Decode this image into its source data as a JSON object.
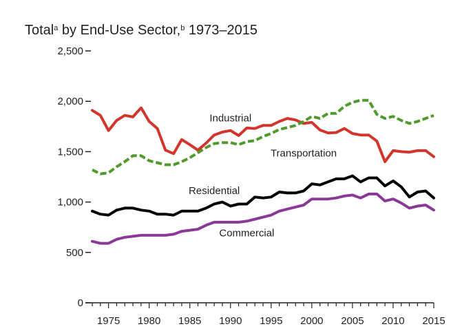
{
  "chart_data": {
    "type": "line",
    "title": {
      "main": "Total",
      "sup_a": "a",
      "middle": " by End-Use Sector,",
      "sup_b": "b",
      "end": " 1973–2015"
    },
    "xlabel": "",
    "ylabel": "",
    "xlim": [
      1973,
      2015
    ],
    "ylim": [
      0,
      2500
    ],
    "grid": false,
    "legend": "inline-labels",
    "yticks": [
      0,
      500,
      1000,
      1500,
      2000,
      2500
    ],
    "ytick_labels": [
      "0",
      "500",
      "1,000",
      "1,500",
      "2,000",
      "2,500"
    ],
    "xticks": [
      1975,
      1980,
      1985,
      1990,
      1995,
      2000,
      2005,
      2010,
      2015
    ],
    "xtick_labels": [
      "1975",
      "1980",
      "1985",
      "1990",
      "1995",
      "2000",
      "2005",
      "2010",
      "2015"
    ],
    "x": [
      1973,
      1974,
      1975,
      1976,
      1977,
      1978,
      1979,
      1980,
      1981,
      1982,
      1983,
      1984,
      1985,
      1986,
      1987,
      1988,
      1989,
      1990,
      1991,
      1992,
      1993,
      1994,
      1995,
      1996,
      1997,
      1998,
      1999,
      2000,
      2001,
      2002,
      2003,
      2004,
      2005,
      2006,
      2007,
      2008,
      2009,
      2010,
      2011,
      2012,
      2013,
      2014,
      2015
    ],
    "series": [
      {
        "name": "Industrial",
        "color": "#d2352c",
        "dash": false,
        "values": [
          1910,
          1860,
          1710,
          1810,
          1860,
          1845,
          1935,
          1800,
          1730,
          1515,
          1480,
          1620,
          1570,
          1515,
          1585,
          1665,
          1695,
          1710,
          1660,
          1735,
          1730,
          1760,
          1760,
          1800,
          1830,
          1815,
          1780,
          1790,
          1715,
          1685,
          1690,
          1730,
          1680,
          1665,
          1665,
          1605,
          1400,
          1510,
          1500,
          1495,
          1510,
          1510,
          1450
        ]
      },
      {
        "name": "Transportation",
        "color": "#4f9a2a",
        "dash": true,
        "values": [
          1320,
          1280,
          1290,
          1350,
          1400,
          1460,
          1460,
          1410,
          1390,
          1370,
          1370,
          1400,
          1440,
          1490,
          1540,
          1580,
          1590,
          1590,
          1570,
          1600,
          1610,
          1650,
          1680,
          1720,
          1740,
          1760,
          1800,
          1850,
          1830,
          1880,
          1880,
          1950,
          1990,
          2010,
          2010,
          1870,
          1830,
          1850,
          1810,
          1780,
          1800,
          1830,
          1860
        ]
      },
      {
        "name": "Residential",
        "color": "#000000",
        "dash": false,
        "values": [
          910,
          880,
          870,
          920,
          940,
          940,
          920,
          910,
          880,
          880,
          870,
          910,
          910,
          910,
          940,
          980,
          1000,
          960,
          980,
          980,
          1050,
          1040,
          1050,
          1100,
          1090,
          1090,
          1110,
          1180,
          1170,
          1200,
          1230,
          1230,
          1260,
          1200,
          1240,
          1240,
          1160,
          1210,
          1150,
          1050,
          1100,
          1110,
          1040
        ]
      },
      {
        "name": "Commercial",
        "color": "#8a3a96",
        "dash": false,
        "values": [
          610,
          590,
          590,
          630,
          650,
          660,
          670,
          670,
          670,
          670,
          680,
          710,
          720,
          730,
          770,
          800,
          800,
          800,
          800,
          810,
          830,
          850,
          870,
          910,
          930,
          950,
          970,
          1030,
          1030,
          1030,
          1040,
          1060,
          1070,
          1040,
          1080,
          1080,
          1010,
          1030,
          990,
          940,
          960,
          970,
          920
        ]
      }
    ],
    "labels": [
      {
        "series": "Industrial",
        "text": "Industrial",
        "x": 1990,
        "y": 1800
      },
      {
        "series": "Transportation",
        "text": "Transportation",
        "x": 1999,
        "y": 1450
      },
      {
        "series": "Residential",
        "text": "Residential",
        "x": 1988,
        "y": 1080
      },
      {
        "series": "Commercial",
        "text": "Commercial",
        "x": 1992,
        "y": 660
      }
    ]
  }
}
